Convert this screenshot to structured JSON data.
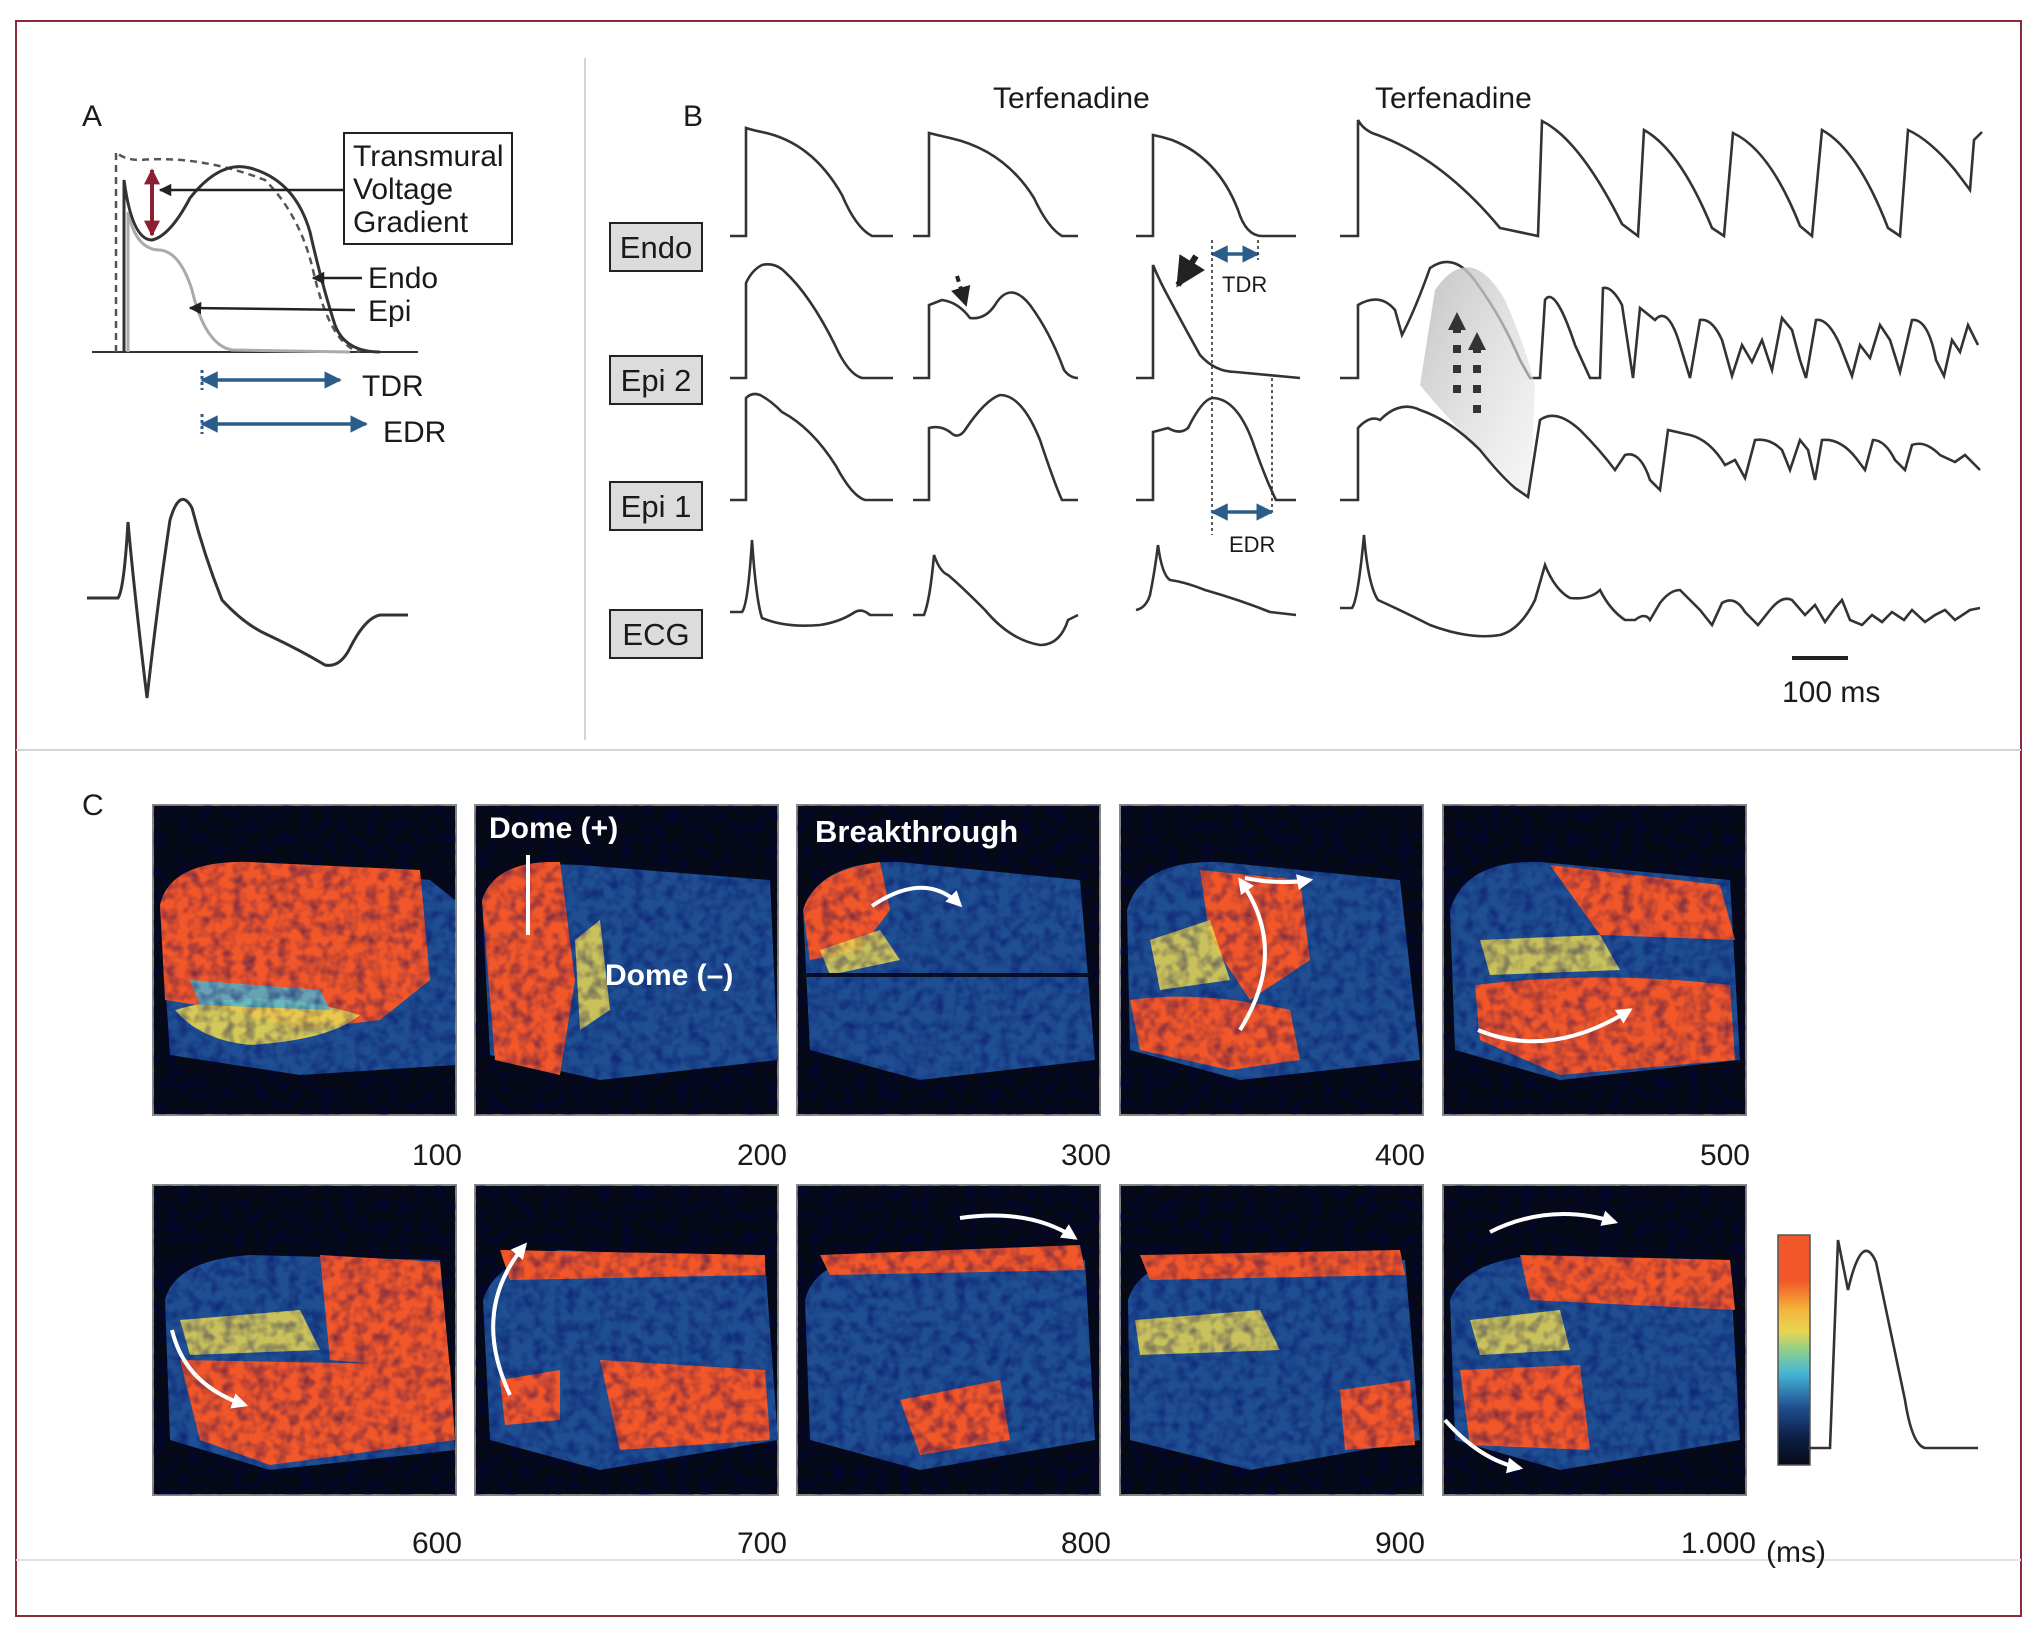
{
  "panels": {
    "a": {
      "letter": "A",
      "callout_lines": [
        "Transmural",
        "Voltage",
        "Gradient"
      ],
      "endo_label": "Endo",
      "epi_label": "Epi",
      "tdr_label": "TDR",
      "edr_label": "EDR"
    },
    "b": {
      "letter": "B",
      "drug_label_1": "Terfenadine",
      "drug_label_2": "Terfenadine",
      "rows": [
        "Endo",
        "Epi 2",
        "Epi 1",
        "ECG"
      ],
      "tdr_label": "TDR",
      "edr_label": "EDR",
      "scale_label": "100 ms"
    },
    "c": {
      "letter": "C",
      "map_labels": {
        "dome_plus": "Dome (+)",
        "dome_minus": "Dome (–)",
        "breakthrough": "Breakthrough"
      },
      "times": [
        "100",
        "200",
        "300",
        "400",
        "500",
        "600",
        "700",
        "800",
        "900",
        "1.000"
      ],
      "unit": "(ms)"
    }
  },
  "colors": {
    "border": "#8b2a3a",
    "divider": "#d4d4d4",
    "trace": "#333333",
    "epi_gray": "#aaaaaa",
    "arrow_red": "#8b2032",
    "interval_blue": "#2a5d8a",
    "map_bg": "#060a14",
    "map_red": "#f2572a",
    "map_yellow": "#e7d552",
    "map_cyan": "#46b7d6",
    "map_blue": "#1f4f92"
  }
}
